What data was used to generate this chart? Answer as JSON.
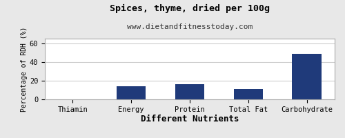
{
  "title": "Spices, thyme, dried per 100g",
  "subtitle": "www.dietandfitnesstoday.com",
  "xlabel": "Different Nutrients",
  "ylabel": "Percentage of RDH (%)",
  "categories": [
    "Thiamin",
    "Energy",
    "Protein",
    "Total Fat",
    "Carbohydrate"
  ],
  "values": [
    0,
    14,
    16,
    11,
    49
  ],
  "bar_color": "#1f3a7a",
  "ylim": [
    0,
    65
  ],
  "yticks": [
    0,
    20,
    40,
    60
  ],
  "background_color": "#e8e8e8",
  "plot_bg_color": "#ffffff",
  "title_fontsize": 9.5,
  "subtitle_fontsize": 8,
  "xlabel_fontsize": 9,
  "ylabel_fontsize": 7,
  "tick_fontsize": 7.5,
  "grid_color": "#cccccc",
  "border_color": "#aaaaaa"
}
